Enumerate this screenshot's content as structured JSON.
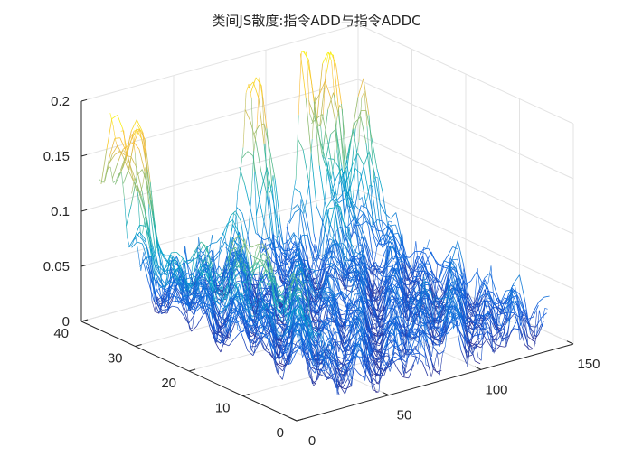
{
  "chart_data": {
    "type": "mesh3d",
    "title": "类间JS散度:指令ADD与指令ADDC",
    "xlabel": "",
    "ylabel": "",
    "zlabel": "",
    "xlim": [
      0,
      150
    ],
    "ylim": [
      0,
      40
    ],
    "zlim": [
      0,
      0.2
    ],
    "x_ticks": [
      "0",
      "50",
      "100",
      "150"
    ],
    "y_ticks": [
      "0",
      "10",
      "20",
      "30",
      "40"
    ],
    "z_ticks": [
      "0",
      "0.05",
      "0.1",
      "0.15",
      "0.2"
    ],
    "grid": true,
    "colormap": "parula",
    "x_range": [
      1,
      140
    ],
    "y_range": [
      1,
      37
    ],
    "surface_features": [
      {
        "x": 2,
        "y": 34,
        "z": 0.105,
        "note": "ridge near x=0"
      },
      {
        "x": 12,
        "y": 34,
        "z": 0.13,
        "note": "yellow crest near x=0"
      },
      {
        "x": 50,
        "y": 30,
        "z": 0.095,
        "note": "peak"
      },
      {
        "x": 82,
        "y": 36,
        "z": 0.2,
        "note": "main peak"
      },
      {
        "x": 112,
        "y": 37,
        "z": 0.2,
        "note": "peak"
      },
      {
        "x": 120,
        "y": 35,
        "z": 0.195,
        "note": "peak"
      },
      {
        "x": 132,
        "y": 33,
        "z": 0.155,
        "note": "peak"
      },
      {
        "x": 95,
        "y": 25,
        "z": 0.085,
        "note": "peak"
      },
      {
        "x": 60,
        "y": 17,
        "z": 0.075,
        "note": "peak"
      },
      {
        "x": 90,
        "y": 5,
        "z": 0.07,
        "note": "peak"
      }
    ],
    "baseline_level": 0.02
  }
}
